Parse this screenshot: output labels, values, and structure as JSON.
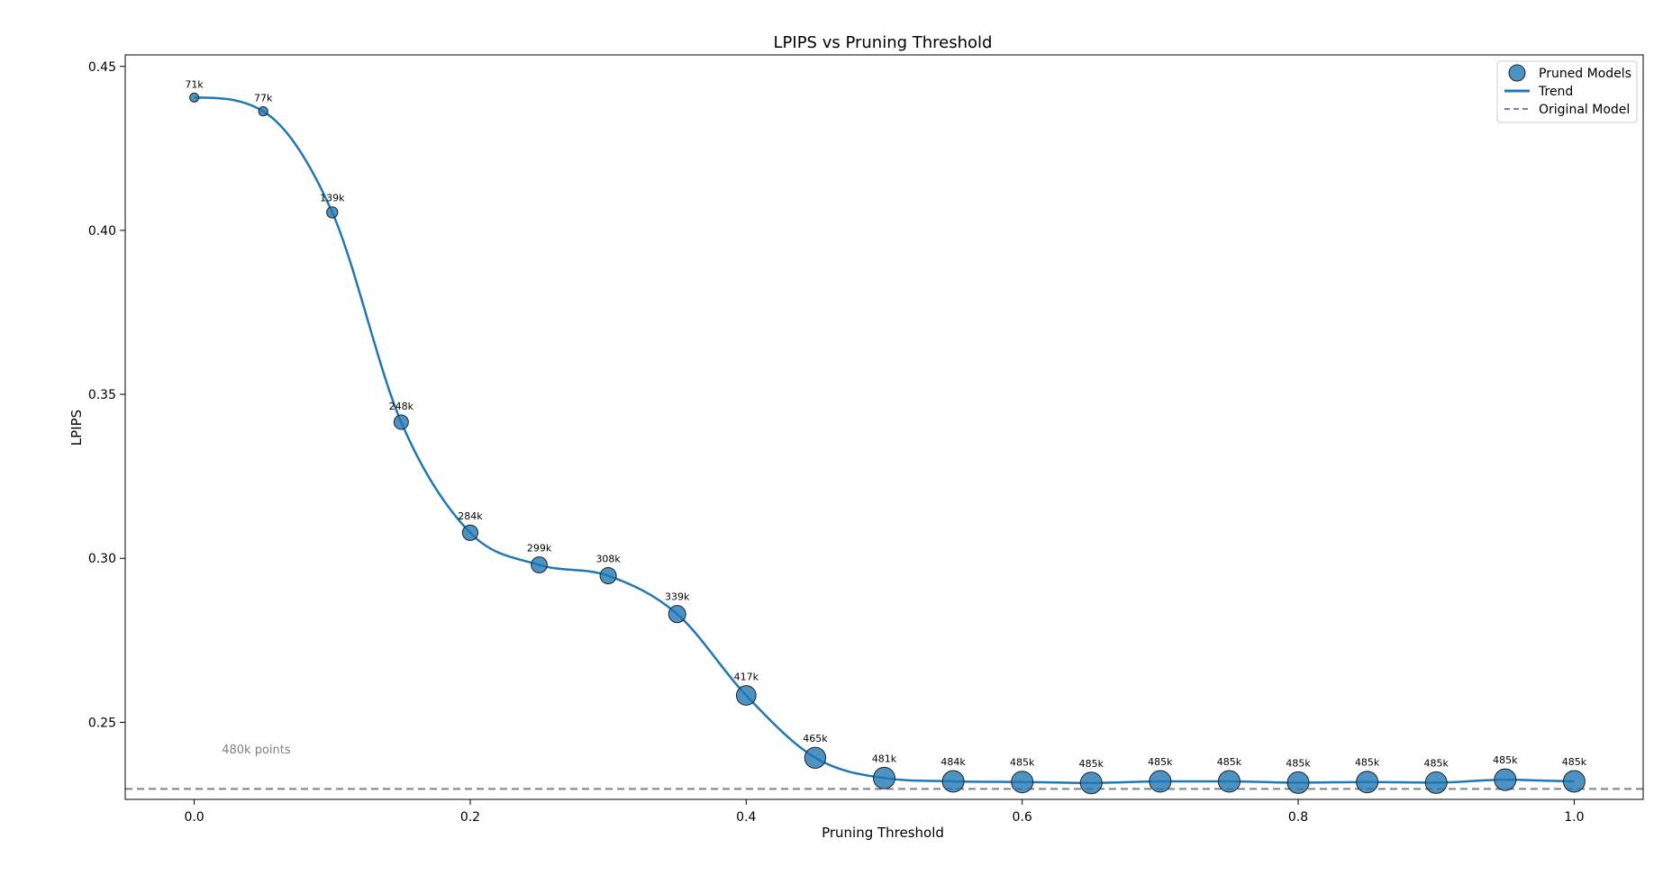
{
  "chart_data": {
    "type": "scatter",
    "title": "LPIPS vs Pruning Threshold",
    "xlabel": "Pruning Threshold",
    "ylabel": "LPIPS",
    "xlim": [
      -0.05,
      1.05
    ],
    "ylim": [
      0.2265,
      0.4535
    ],
    "xticks": [
      0.0,
      0.2,
      0.4,
      0.6,
      0.8,
      1.0
    ],
    "xtick_labels": [
      "0.0",
      "0.2",
      "0.4",
      "0.6",
      "0.8",
      "1.0"
    ],
    "yticks": [
      0.25,
      0.3,
      0.35,
      0.4,
      0.45
    ],
    "ytick_labels": [
      "0.25",
      "0.30",
      "0.35",
      "0.40",
      "0.45"
    ],
    "grid": false,
    "legend_position": "top-right",
    "series": [
      {
        "name": "Pruned Models",
        "kind": "scatter",
        "color": "#1f77b4",
        "x": [
          0.0,
          0.05,
          0.1,
          0.15,
          0.2,
          0.25,
          0.3,
          0.35,
          0.4,
          0.45,
          0.5,
          0.55,
          0.6,
          0.65,
          0.7,
          0.75,
          0.8,
          0.85,
          0.9,
          0.95,
          1.0
        ],
        "y": [
          0.4405,
          0.4363,
          0.4055,
          0.3415,
          0.3078,
          0.298,
          0.2947,
          0.283,
          0.2582,
          0.2392,
          0.233,
          0.232,
          0.2318,
          0.2315,
          0.232,
          0.232,
          0.2316,
          0.2318,
          0.2316,
          0.2325,
          0.232
        ],
        "point_counts_k": [
          71,
          77,
          139,
          248,
          284,
          299,
          308,
          339,
          417,
          465,
          481,
          484,
          485,
          485,
          485,
          485,
          485,
          485,
          485,
          485,
          485
        ],
        "labels": [
          "71k",
          "77k",
          "139k",
          "248k",
          "284k",
          "299k",
          "308k",
          "339k",
          "417k",
          "465k",
          "481k",
          "484k",
          "485k",
          "485k",
          "485k",
          "485k",
          "485k",
          "485k",
          "485k",
          "485k",
          "485k"
        ]
      },
      {
        "name": "Trend",
        "kind": "line",
        "color": "#1f77b4"
      },
      {
        "name": "Original Model",
        "kind": "hline",
        "color": "#808080",
        "style": "dashed",
        "y": 0.2297
      }
    ],
    "annotations": [
      {
        "text": "480k points",
        "x": 0.02,
        "y": 0.2405
      }
    ]
  }
}
